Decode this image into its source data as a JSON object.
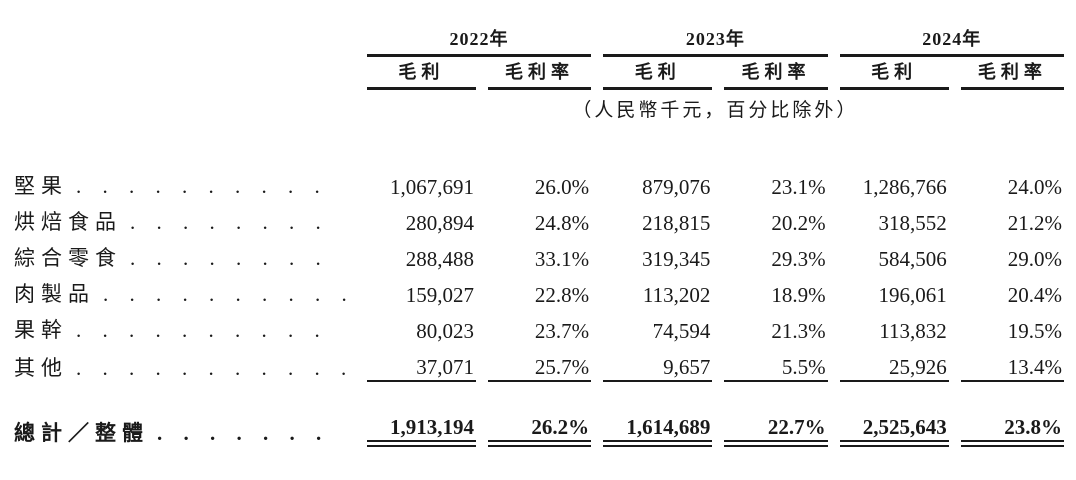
{
  "document": {
    "language": "zh-Hant",
    "unit_note": "（人民幣千元，百分比除外）"
  },
  "table": {
    "years": [
      "2022年",
      "2023年",
      "2024年"
    ],
    "subheaders": [
      "毛利",
      "毛利率",
      "毛利",
      "毛利率",
      "毛利",
      "毛利率"
    ],
    "rows": [
      {
        "label": "堅果",
        "leader": ". . . . . . . . . .",
        "values": [
          "1,067,691",
          "26.0%",
          "879,076",
          "23.1%",
          "1,286,766",
          "24.0%"
        ]
      },
      {
        "label": "烘焙食品",
        "leader": ". . . . . . . .",
        "values": [
          "280,894",
          "24.8%",
          "218,815",
          "20.2%",
          "318,552",
          "21.2%"
        ]
      },
      {
        "label": "綜合零食",
        "leader": ". . . . . . . .",
        "values": [
          "288,488",
          "33.1%",
          "319,345",
          "29.3%",
          "584,506",
          "29.0%"
        ]
      },
      {
        "label": "肉製品",
        "leader": ". . . . . . . . . .",
        "values": [
          "159,027",
          "22.8%",
          "113,202",
          "18.9%",
          "196,061",
          "20.4%"
        ]
      },
      {
        "label": "果幹",
        "leader": ". . . . . . . . . .",
        "values": [
          "80,023",
          "23.7%",
          "74,594",
          "21.3%",
          "113,832",
          "19.5%"
        ]
      },
      {
        "label": "其他",
        "leader": ". . . . . . . . . . .",
        "values": [
          "37,071",
          "25.7%",
          "9,657",
          "5.5%",
          "25,926",
          "13.4%"
        ]
      }
    ],
    "total": {
      "label": "總計／整體",
      "leader": ". . . . . . .",
      "values": [
        "1,913,194",
        "26.2%",
        "1,614,689",
        "22.7%",
        "2,525,643",
        "23.8%"
      ]
    }
  },
  "colors": {
    "text": "#1a1a1a",
    "rule": "#1a1a1a",
    "background": "#ffffff"
  }
}
